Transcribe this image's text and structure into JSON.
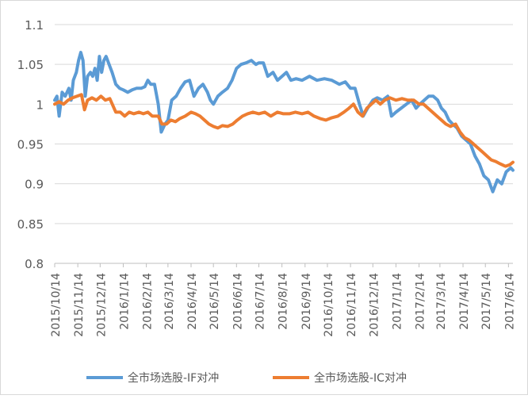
{
  "chart_data": {
    "type": "line",
    "ylim": [
      0.8,
      1.1
    ],
    "yticks": [
      "0.8",
      "0.85",
      "0.9",
      "0.95",
      "1",
      "1.05",
      "1.1"
    ],
    "x_tick_labels": [
      "2015/10/14",
      "2015/11/14",
      "2015/12/14",
      "2016/1/14",
      "2016/2/14",
      "2016/3/14",
      "2016/4/14",
      "2016/5/14",
      "2016/6/14",
      "2016/7/14",
      "2016/8/14",
      "2016/9/14",
      "2016/10/14",
      "2016/11/14",
      "2016/12/14",
      "2017/1/14",
      "2017/2/14",
      "2017/3/14",
      "2017/4/14",
      "2017/5/14",
      "2017/6/14"
    ],
    "x_range": [
      "2015/10/14",
      "2017/6/20"
    ],
    "grid": "horizontal",
    "legend_position": "bottom",
    "series": [
      {
        "name": "全市场选股-IF对冲",
        "color": "#5b9bd5",
        "points": [
          [
            "2015/10/14",
            1.005
          ],
          [
            "2015/10/17",
            1.01
          ],
          [
            "2015/10/20",
            0.985
          ],
          [
            "2015/10/24",
            1.015
          ],
          [
            "2015/10/28",
            1.01
          ],
          [
            "2015/11/02",
            1.02
          ],
          [
            "2015/11/05",
            1.005
          ],
          [
            "2015/11/08",
            1.03
          ],
          [
            "2015/11/12",
            1.04
          ],
          [
            "2015/11/15",
            1.055
          ],
          [
            "2015/11/18",
            1.065
          ],
          [
            "2015/11/21",
            1.055
          ],
          [
            "2015/11/24",
            1.01
          ],
          [
            "2015/11/27",
            1.035
          ],
          [
            "2015/12/01",
            1.04
          ],
          [
            "2015/12/04",
            1.035
          ],
          [
            "2015/12/07",
            1.045
          ],
          [
            "2015/12/10",
            1.03
          ],
          [
            "2015/12/13",
            1.06
          ],
          [
            "2015/12/16",
            1.04
          ],
          [
            "2015/12/19",
            1.055
          ],
          [
            "2015/12/22",
            1.06
          ],
          [
            "2015/12/26",
            1.05
          ],
          [
            "2015/12/30",
            1.04
          ],
          [
            "2016/01/04",
            1.025
          ],
          [
            "2016/01/09",
            1.02
          ],
          [
            "2016/01/14",
            1.018
          ],
          [
            "2016/01/20",
            1.015
          ],
          [
            "2016/01/26",
            1.018
          ],
          [
            "2016/02/01",
            1.02
          ],
          [
            "2016/02/07",
            1.02
          ],
          [
            "2016/02/12",
            1.022
          ],
          [
            "2016/02/16",
            1.03
          ],
          [
            "2016/02/20",
            1.025
          ],
          [
            "2016/02/25",
            1.025
          ],
          [
            "2016/03/01",
            1.0
          ],
          [
            "2016/03/05",
            0.965
          ],
          [
            "2016/03/10",
            0.975
          ],
          [
            "2016/03/14",
            0.98
          ],
          [
            "2016/03/19",
            1.005
          ],
          [
            "2016/03/25",
            1.01
          ],
          [
            "2016/03/31",
            1.02
          ],
          [
            "2016/04/06",
            1.028
          ],
          [
            "2016/04/12",
            1.03
          ],
          [
            "2016/04/18",
            1.01
          ],
          [
            "2016/04/24",
            1.02
          ],
          [
            "2016/04/30",
            1.025
          ],
          [
            "2016/05/06",
            1.015
          ],
          [
            "2016/05/10",
            1.005
          ],
          [
            "2016/05/14",
            1.0
          ],
          [
            "2016/05/20",
            1.01
          ],
          [
            "2016/05/26",
            1.015
          ],
          [
            "2016/06/02",
            1.02
          ],
          [
            "2016/06/08",
            1.03
          ],
          [
            "2016/06/14",
            1.045
          ],
          [
            "2016/06/20",
            1.05
          ],
          [
            "2016/06/27",
            1.052
          ],
          [
            "2016/07/04",
            1.055
          ],
          [
            "2016/07/10",
            1.05
          ],
          [
            "2016/07/14",
            1.052
          ],
          [
            "2016/07/20",
            1.052
          ],
          [
            "2016/07/26",
            1.035
          ],
          [
            "2016/08/02",
            1.04
          ],
          [
            "2016/08/08",
            1.03
          ],
          [
            "2016/08/14",
            1.035
          ],
          [
            "2016/08/20",
            1.04
          ],
          [
            "2016/08/26",
            1.03
          ],
          [
            "2016/09/02",
            1.032
          ],
          [
            "2016/09/10",
            1.03
          ],
          [
            "2016/09/20",
            1.035
          ],
          [
            "2016/09/30",
            1.03
          ],
          [
            "2016/10/10",
            1.032
          ],
          [
            "2016/10/20",
            1.03
          ],
          [
            "2016/10/30",
            1.025
          ],
          [
            "2016/11/07",
            1.028
          ],
          [
            "2016/11/14",
            1.02
          ],
          [
            "2016/11/20",
            1.02
          ],
          [
            "2016/11/26",
            1.0
          ],
          [
            "2016/12/01",
            0.985
          ],
          [
            "2016/12/07",
            0.995
          ],
          [
            "2016/12/14",
            1.005
          ],
          [
            "2016/12/20",
            1.008
          ],
          [
            "2016/12/27",
            1.005
          ],
          [
            "2017/01/03",
            1.01
          ],
          [
            "2017/01/08",
            0.985
          ],
          [
            "2017/01/14",
            0.99
          ],
          [
            "2017/01/21",
            0.995
          ],
          [
            "2017/01/28",
            1.0
          ],
          [
            "2017/02/04",
            1.005
          ],
          [
            "2017/02/10",
            0.995
          ],
          [
            "2017/02/15",
            1.0
          ],
          [
            "2017/02/21",
            1.005
          ],
          [
            "2017/02/27",
            1.01
          ],
          [
            "2017/03/05",
            1.01
          ],
          [
            "2017/03/11",
            1.005
          ],
          [
            "2017/03/16",
            0.995
          ],
          [
            "2017/03/21",
            0.99
          ],
          [
            "2017/03/26",
            0.98
          ],
          [
            "2017/03/31",
            0.975
          ],
          [
            "2017/04/06",
            0.97
          ],
          [
            "2017/04/12",
            0.96
          ],
          [
            "2017/04/18",
            0.955
          ],
          [
            "2017/04/24",
            0.95
          ],
          [
            "2017/04/30",
            0.935
          ],
          [
            "2017/05/06",
            0.925
          ],
          [
            "2017/05/12",
            0.91
          ],
          [
            "2017/05/18",
            0.905
          ],
          [
            "2017/05/24",
            0.89
          ],
          [
            "2017/05/30",
            0.905
          ],
          [
            "2017/06/05",
            0.9
          ],
          [
            "2017/06/11",
            0.915
          ],
          [
            "2017/06/17",
            0.92
          ],
          [
            "2017/06/20",
            0.917
          ]
        ]
      },
      {
        "name": "全市场选股-IC对冲",
        "color": "#ed7d31",
        "points": [
          [
            "2015/10/14",
            1.0
          ],
          [
            "2015/10/20",
            1.003
          ],
          [
            "2015/10/26",
            1.0
          ],
          [
            "2015/11/01",
            1.005
          ],
          [
            "2015/11/07",
            1.008
          ],
          [
            "2015/11/13",
            1.01
          ],
          [
            "2015/11/19",
            1.012
          ],
          [
            "2015/11/23",
            0.993
          ],
          [
            "2015/11/27",
            1.005
          ],
          [
            "2015/12/03",
            1.008
          ],
          [
            "2015/12/09",
            1.005
          ],
          [
            "2015/12/15",
            1.01
          ],
          [
            "2015/12/21",
            1.005
          ],
          [
            "2015/12/27",
            1.007
          ],
          [
            "2016/01/04",
            0.99
          ],
          [
            "2016/01/10",
            0.99
          ],
          [
            "2016/01/16",
            0.985
          ],
          [
            "2016/01/22",
            0.99
          ],
          [
            "2016/01/28",
            0.988
          ],
          [
            "2016/02/04",
            0.99
          ],
          [
            "2016/02/10",
            0.988
          ],
          [
            "2016/02/16",
            0.99
          ],
          [
            "2016/02/22",
            0.985
          ],
          [
            "2016/03/01",
            0.985
          ],
          [
            "2016/03/06",
            0.975
          ],
          [
            "2016/03/12",
            0.975
          ],
          [
            "2016/03/18",
            0.98
          ],
          [
            "2016/03/24",
            0.978
          ],
          [
            "2016/03/30",
            0.982
          ],
          [
            "2016/04/06",
            0.985
          ],
          [
            "2016/04/14",
            0.99
          ],
          [
            "2016/04/20",
            0.988
          ],
          [
            "2016/04/26",
            0.985
          ],
          [
            "2016/05/02",
            0.98
          ],
          [
            "2016/05/08",
            0.975
          ],
          [
            "2016/05/14",
            0.972
          ],
          [
            "2016/05/20",
            0.97
          ],
          [
            "2016/05/26",
            0.973
          ],
          [
            "2016/06/02",
            0.972
          ],
          [
            "2016/06/09",
            0.975
          ],
          [
            "2016/06/15",
            0.98
          ],
          [
            "2016/06/22",
            0.985
          ],
          [
            "2016/06/29",
            0.988
          ],
          [
            "2016/07/06",
            0.99
          ],
          [
            "2016/07/14",
            0.988
          ],
          [
            "2016/07/22",
            0.99
          ],
          [
            "2016/07/30",
            0.985
          ],
          [
            "2016/08/08",
            0.99
          ],
          [
            "2016/08/16",
            0.988
          ],
          [
            "2016/08/24",
            0.988
          ],
          [
            "2016/09/01",
            0.99
          ],
          [
            "2016/09/10",
            0.988
          ],
          [
            "2016/09/18",
            0.99
          ],
          [
            "2016/09/26",
            0.985
          ],
          [
            "2016/10/04",
            0.982
          ],
          [
            "2016/10/12",
            0.98
          ],
          [
            "2016/10/20",
            0.983
          ],
          [
            "2016/10/28",
            0.985
          ],
          [
            "2016/11/05",
            0.99
          ],
          [
            "2016/11/12",
            0.995
          ],
          [
            "2016/11/18",
            1.0
          ],
          [
            "2016/11/24",
            0.99
          ],
          [
            "2016/11/30",
            0.985
          ],
          [
            "2016/12/06",
            0.995
          ],
          [
            "2016/12/12",
            1.0
          ],
          [
            "2016/12/18",
            1.005
          ],
          [
            "2016/12/24",
            1.0
          ],
          [
            "2016/12/30",
            1.005
          ],
          [
            "2017/01/06",
            1.008
          ],
          [
            "2017/01/14",
            1.005
          ],
          [
            "2017/01/22",
            1.007
          ],
          [
            "2017/01/30",
            1.005
          ],
          [
            "2017/02/07",
            1.005
          ],
          [
            "2017/02/14",
            1.0
          ],
          [
            "2017/02/20",
            1.0
          ],
          [
            "2017/02/26",
            0.995
          ],
          [
            "2017/03/04",
            0.99
          ],
          [
            "2017/03/10",
            0.985
          ],
          [
            "2017/03/16",
            0.98
          ],
          [
            "2017/03/22",
            0.975
          ],
          [
            "2017/03/28",
            0.972
          ],
          [
            "2017/04/04",
            0.975
          ],
          [
            "2017/04/10",
            0.965
          ],
          [
            "2017/04/16",
            0.958
          ],
          [
            "2017/04/22",
            0.955
          ],
          [
            "2017/04/28",
            0.95
          ],
          [
            "2017/05/04",
            0.945
          ],
          [
            "2017/05/10",
            0.94
          ],
          [
            "2017/05/16",
            0.935
          ],
          [
            "2017/05/22",
            0.93
          ],
          [
            "2017/05/28",
            0.928
          ],
          [
            "2017/06/03",
            0.925
          ],
          [
            "2017/06/10",
            0.922
          ],
          [
            "2017/06/16",
            0.924
          ],
          [
            "2017/06/20",
            0.927
          ]
        ]
      }
    ]
  }
}
